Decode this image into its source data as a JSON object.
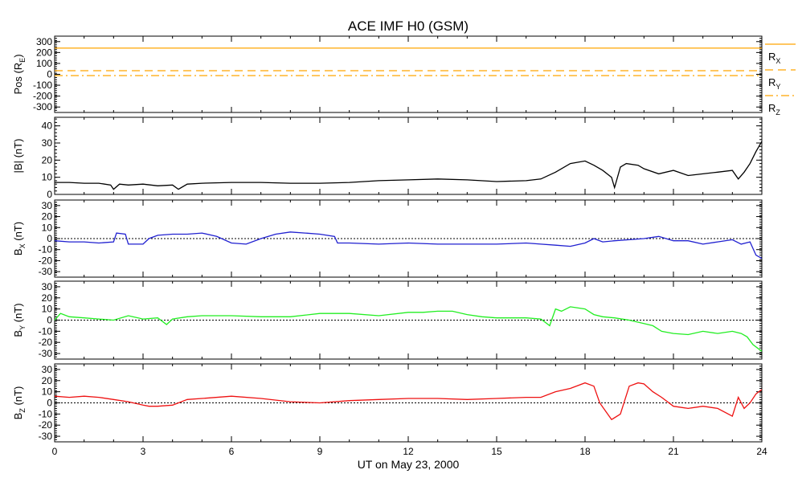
{
  "figure": {
    "title": "ACE IMF H0 (GSM)",
    "xlabel": "UT on May 23, 2000"
  },
  "chart_data": [
    {
      "type": "line",
      "panel": "position",
      "ylabel": {
        "main": "Pos (R",
        "sub": "E",
        "tail": ")"
      },
      "ylim": [
        -350,
        350
      ],
      "yticks": [
        300,
        200,
        100,
        0,
        -100,
        -200,
        -300
      ],
      "xlim": [
        0,
        24
      ],
      "series": [
        {
          "name": "R",
          "sub": "X",
          "color": "#ffa500",
          "dash": "solid",
          "x": [
            0,
            24
          ],
          "y": [
            240,
            240
          ]
        },
        {
          "name": "R",
          "sub": "Y",
          "color": "#ffa500",
          "dash": "dash",
          "x": [
            0,
            24
          ],
          "y": [
            33,
            33
          ]
        },
        {
          "name": "R",
          "sub": "Z",
          "color": "#ffa500",
          "dash": "dashdot",
          "x": [
            0,
            24
          ],
          "y": [
            -12,
            -12
          ]
        }
      ]
    },
    {
      "type": "line",
      "panel": "B_total",
      "ylabel": {
        "main": "|B| (nT)",
        "sub": "",
        "tail": ""
      },
      "ylim": [
        0,
        45
      ],
      "yticks": [
        40,
        30,
        20,
        10,
        0
      ],
      "xlim": [
        0,
        24
      ],
      "zero_line": false,
      "series": [
        {
          "color": "#000000",
          "x": [
            0,
            0.5,
            1,
            1.5,
            1.9,
            2.0,
            2.2,
            2.5,
            3,
            3.5,
            4,
            4.2,
            4.5,
            5,
            6,
            7,
            8,
            9,
            10,
            11,
            12,
            13,
            14,
            15,
            16,
            16.5,
            17,
            17.5,
            18,
            18.3,
            18.6,
            18.9,
            19.0,
            19.2,
            19.4,
            19.8,
            20,
            20.5,
            21,
            21.5,
            22,
            22.5,
            23,
            23.2,
            23.4,
            23.6,
            23.8,
            24
          ],
          "y": [
            7,
            7,
            6.5,
            6.5,
            5.5,
            3,
            6,
            5.5,
            6,
            5,
            5.5,
            3,
            6,
            6.5,
            7,
            7,
            6.5,
            6.5,
            7,
            8,
            8.5,
            9,
            8.5,
            7.5,
            8,
            9,
            13,
            18,
            19.5,
            17,
            14,
            10,
            4,
            16,
            18,
            17,
            15,
            12,
            14,
            11,
            12,
            13,
            14,
            9,
            13,
            18,
            25,
            31
          ]
        }
      ]
    },
    {
      "type": "line",
      "panel": "Bx",
      "ylabel": {
        "main": "B",
        "sub": "X",
        "tail": " (nT)"
      },
      "ylim": [
        -35,
        35
      ],
      "yticks": [
        30,
        20,
        10,
        0,
        -10,
        -20,
        -30
      ],
      "xlim": [
        0,
        24
      ],
      "zero_line": true,
      "series": [
        {
          "color": "#2020d0",
          "x": [
            0,
            0.5,
            1,
            1.5,
            2,
            2.1,
            2.4,
            2.5,
            3,
            3.2,
            3.5,
            4,
            4.5,
            5,
            5.5,
            6,
            6.5,
            7,
            7.5,
            8,
            8.5,
            9,
            9.5,
            9.6,
            10,
            11,
            12,
            13,
            14,
            15,
            16,
            16.5,
            17,
            17.5,
            18,
            18.3,
            18.6,
            19,
            19.5,
            20,
            20.5,
            21,
            21.5,
            22,
            22.5,
            23,
            23.3,
            23.6,
            23.8,
            24
          ],
          "y": [
            -2,
            -3,
            -3,
            -4,
            -3,
            5,
            4,
            -5,
            -5,
            0,
            3,
            4,
            4,
            5,
            2,
            -4,
            -5,
            0,
            4,
            6,
            5,
            4,
            2,
            -4,
            -4,
            -5,
            -4,
            -5,
            -5,
            -5,
            -4,
            -5,
            -6,
            -7,
            -4,
            0,
            -3,
            -2,
            -1,
            0,
            2,
            -2,
            -2,
            -5,
            -3,
            -1,
            -5,
            -3,
            -15,
            -18
          ]
        }
      ]
    },
    {
      "type": "line",
      "panel": "By",
      "ylabel": {
        "main": "B",
        "sub": "Y",
        "tail": " (nT)"
      },
      "ylim": [
        -35,
        35
      ],
      "yticks": [
        30,
        20,
        10,
        0,
        -10,
        -20,
        -30
      ],
      "xlim": [
        0,
        24
      ],
      "zero_line": true,
      "series": [
        {
          "color": "#22ee22",
          "x": [
            0,
            0.2,
            0.5,
            1,
            1.5,
            2,
            2.5,
            3,
            3.5,
            3.8,
            4,
            4.5,
            5,
            6,
            7,
            8,
            9,
            10,
            11,
            12,
            12.5,
            13,
            13.5,
            14,
            14.5,
            15,
            16,
            16.5,
            16.8,
            17,
            17.2,
            17.5,
            18,
            18.3,
            18.6,
            19,
            19.5,
            20,
            20.3,
            20.6,
            21,
            21.5,
            22,
            22.5,
            23,
            23.3,
            23.5,
            23.7,
            24
          ],
          "y": [
            0,
            6,
            3,
            2,
            1,
            0,
            4,
            1,
            2,
            -4,
            1,
            3,
            4,
            4,
            3,
            3,
            6,
            6,
            4,
            7,
            7,
            8,
            8,
            5,
            3,
            2,
            2,
            1,
            -5,
            10,
            8,
            12,
            10,
            5,
            3,
            2,
            0,
            -3,
            -5,
            -10,
            -12,
            -13,
            -10,
            -12,
            -10,
            -12,
            -15,
            -22,
            -28
          ]
        }
      ]
    },
    {
      "type": "line",
      "panel": "Bz",
      "ylabel": {
        "main": "B",
        "sub": "Z",
        "tail": " (nT)"
      },
      "ylim": [
        -35,
        35
      ],
      "yticks": [
        30,
        20,
        10,
        0,
        -10,
        -20,
        -30
      ],
      "xlim": [
        0,
        24
      ],
      "zero_line": true,
      "series": [
        {
          "color": "#ee1111",
          "x": [
            0,
            0.5,
            1,
            1.5,
            2,
            2.5,
            3,
            3.2,
            3.5,
            4,
            4.5,
            5,
            6,
            7,
            8,
            9,
            10,
            11,
            12,
            13,
            14,
            15,
            16,
            16.5,
            17,
            17.5,
            18,
            18.3,
            18.5,
            18.9,
            19.2,
            19.5,
            19.8,
            20.0,
            20.3,
            20.6,
            21,
            21.5,
            22,
            22.5,
            23,
            23.2,
            23.4,
            23.6,
            23.8,
            24
          ],
          "y": [
            6,
            5,
            6,
            5,
            3,
            1,
            -2,
            -3,
            -3,
            -2,
            3,
            4,
            6,
            4,
            1,
            0,
            2,
            3,
            4,
            4,
            3,
            4,
            5,
            5,
            10,
            13,
            18,
            15,
            0,
            -15,
            -10,
            15,
            18,
            17,
            10,
            5,
            -3,
            -5,
            -3,
            -5,
            -12,
            5,
            -5,
            0,
            8,
            12
          ]
        }
      ]
    }
  ],
  "xaxis": {
    "ticks": [
      0,
      3,
      6,
      9,
      12,
      15,
      18,
      21,
      24
    ],
    "range": [
      0,
      24
    ]
  }
}
